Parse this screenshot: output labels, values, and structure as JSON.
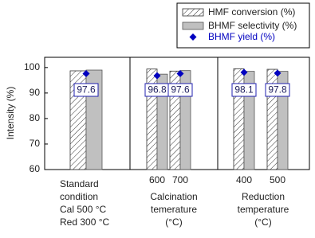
{
  "chart_data": {
    "type": "bar",
    "y_label": "Intensity (%)",
    "categories": [
      null,
      "600",
      "700",
      "400",
      "500"
    ],
    "group_labels": [
      [
        "Standard",
        "condition",
        "Cal 500 °C",
        "Red 300 °C"
      ],
      [
        "Calcination",
        "temerature",
        "(°C)"
      ],
      [
        "Reduction",
        "temperature",
        "(°C)"
      ]
    ],
    "series": [
      {
        "name": "HMF conversion (%)",
        "color": "#ffffff",
        "values": [
          98.7,
          99.4,
          98.6,
          99.5,
          99.3
        ]
      },
      {
        "name": "BHMF selectivity (%)",
        "color": "#c0c0c0",
        "values": [
          99.0,
          97.4,
          98.8,
          98.5,
          98.5
        ]
      },
      {
        "name": "BHMF yield (%)",
        "color": "#0000c0",
        "values": [
          97.6,
          96.8,
          97.6,
          98.1,
          97.8
        ]
      }
    ],
    "ylim": [
      60,
      104
    ],
    "yticks": [
      60,
      70,
      80,
      90,
      100
    ]
  }
}
